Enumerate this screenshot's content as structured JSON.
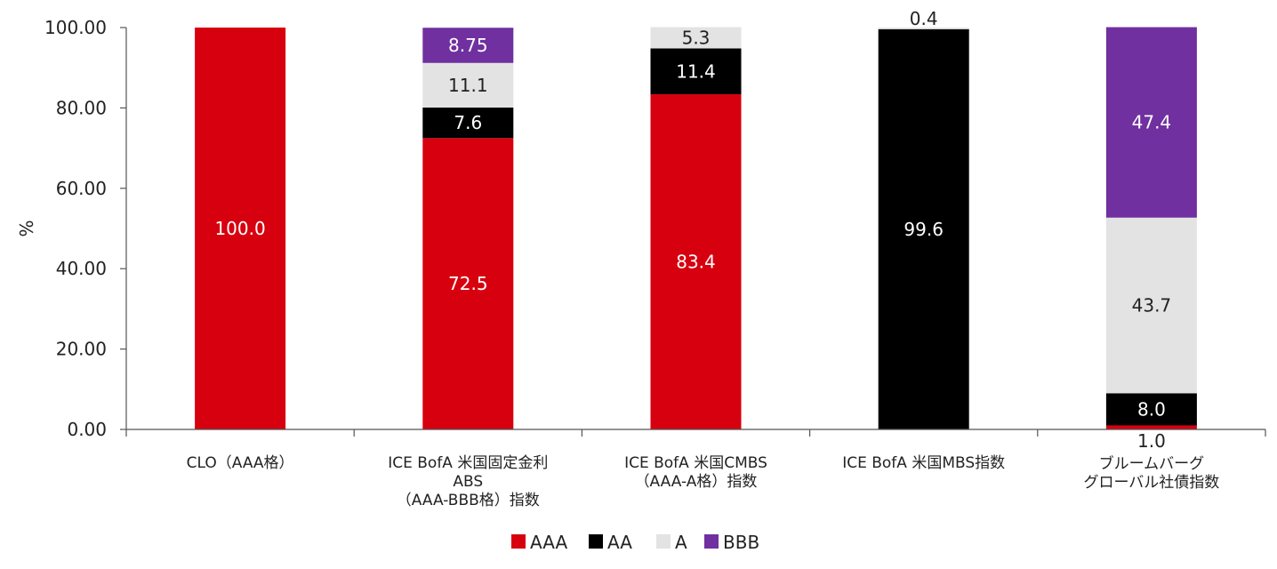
{
  "chart_data": {
    "type": "bar",
    "stacked": true,
    "ylabel": "%",
    "ylim": [
      0,
      100
    ],
    "yticks": [
      "0.00",
      "20.00",
      "40.00",
      "60.00",
      "80.00",
      "100.00"
    ],
    "categories": [
      [
        "CLO（AAA格）"
      ],
      [
        "ICE BofA 米国固定金利",
        "ABS",
        "（AAA-BBB格）指数"
      ],
      [
        "ICE BofA 米国CMBS",
        "（AAA-A格）指数"
      ],
      [
        "ICE BofA 米国MBS指数"
      ],
      [
        "ブルームバーグ",
        "グローバル社債指数"
      ]
    ],
    "series": [
      {
        "name": "AAA",
        "color": "#d7000f",
        "label_color": "#ffffff",
        "values": [
          100.0,
          72.5,
          83.4,
          0,
          1.0
        ],
        "labels": [
          "100.0",
          "72.5",
          "83.4",
          "",
          "1.0"
        ]
      },
      {
        "name": "AA",
        "color": "#000000",
        "label_color": "#ffffff",
        "values": [
          0,
          7.6,
          11.4,
          99.6,
          8.0
        ],
        "labels": [
          "",
          "7.6",
          "11.4",
          "99.6",
          "8.0"
        ]
      },
      {
        "name": "A",
        "color": "#e3e3e3",
        "label_color": "#222222",
        "values": [
          0,
          11.1,
          5.3,
          0.4,
          43.7
        ],
        "labels": [
          "",
          "11.1",
          "5.3",
          "0.4",
          "43.7"
        ]
      },
      {
        "name": "BBB",
        "color": "#7030a0",
        "label_color": "#ffffff",
        "values": [
          0,
          8.75,
          0,
          0,
          47.4
        ],
        "labels": [
          "",
          "8.75",
          "",
          "",
          "47.4"
        ]
      }
    ],
    "legend_position": "bottom",
    "grid": false
  }
}
